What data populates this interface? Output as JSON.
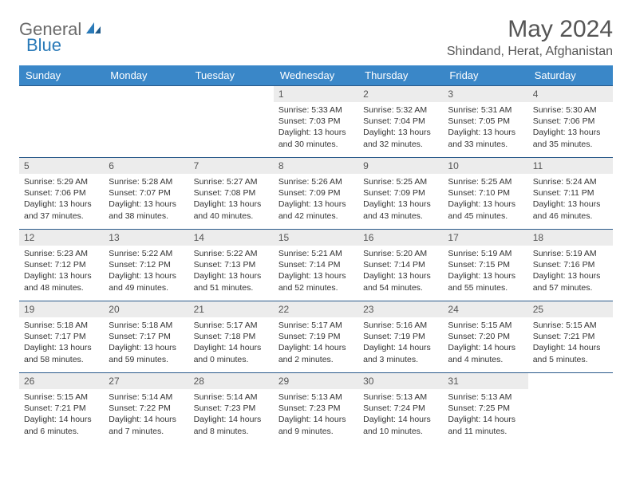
{
  "logo": {
    "text1": "General",
    "text2": "Blue"
  },
  "title": "May 2024",
  "location": "Shindand, Herat, Afghanistan",
  "colors": {
    "header_bg": "#3a87c8",
    "header_text": "#ffffff",
    "daynum_bg": "#ececec",
    "border": "#2a5a8a",
    "logo_gray": "#6a6a6a",
    "logo_blue": "#2a7ab8"
  },
  "weekdays": [
    "Sunday",
    "Monday",
    "Tuesday",
    "Wednesday",
    "Thursday",
    "Friday",
    "Saturday"
  ],
  "weeks": [
    [
      null,
      null,
      null,
      {
        "n": "1",
        "sr": "Sunrise: 5:33 AM",
        "ss": "Sunset: 7:03 PM",
        "d1": "Daylight: 13 hours",
        "d2": "and 30 minutes."
      },
      {
        "n": "2",
        "sr": "Sunrise: 5:32 AM",
        "ss": "Sunset: 7:04 PM",
        "d1": "Daylight: 13 hours",
        "d2": "and 32 minutes."
      },
      {
        "n": "3",
        "sr": "Sunrise: 5:31 AM",
        "ss": "Sunset: 7:05 PM",
        "d1": "Daylight: 13 hours",
        "d2": "and 33 minutes."
      },
      {
        "n": "4",
        "sr": "Sunrise: 5:30 AM",
        "ss": "Sunset: 7:06 PM",
        "d1": "Daylight: 13 hours",
        "d2": "and 35 minutes."
      }
    ],
    [
      {
        "n": "5",
        "sr": "Sunrise: 5:29 AM",
        "ss": "Sunset: 7:06 PM",
        "d1": "Daylight: 13 hours",
        "d2": "and 37 minutes."
      },
      {
        "n": "6",
        "sr": "Sunrise: 5:28 AM",
        "ss": "Sunset: 7:07 PM",
        "d1": "Daylight: 13 hours",
        "d2": "and 38 minutes."
      },
      {
        "n": "7",
        "sr": "Sunrise: 5:27 AM",
        "ss": "Sunset: 7:08 PM",
        "d1": "Daylight: 13 hours",
        "d2": "and 40 minutes."
      },
      {
        "n": "8",
        "sr": "Sunrise: 5:26 AM",
        "ss": "Sunset: 7:09 PM",
        "d1": "Daylight: 13 hours",
        "d2": "and 42 minutes."
      },
      {
        "n": "9",
        "sr": "Sunrise: 5:25 AM",
        "ss": "Sunset: 7:09 PM",
        "d1": "Daylight: 13 hours",
        "d2": "and 43 minutes."
      },
      {
        "n": "10",
        "sr": "Sunrise: 5:25 AM",
        "ss": "Sunset: 7:10 PM",
        "d1": "Daylight: 13 hours",
        "d2": "and 45 minutes."
      },
      {
        "n": "11",
        "sr": "Sunrise: 5:24 AM",
        "ss": "Sunset: 7:11 PM",
        "d1": "Daylight: 13 hours",
        "d2": "and 46 minutes."
      }
    ],
    [
      {
        "n": "12",
        "sr": "Sunrise: 5:23 AM",
        "ss": "Sunset: 7:12 PM",
        "d1": "Daylight: 13 hours",
        "d2": "and 48 minutes."
      },
      {
        "n": "13",
        "sr": "Sunrise: 5:22 AM",
        "ss": "Sunset: 7:12 PM",
        "d1": "Daylight: 13 hours",
        "d2": "and 49 minutes."
      },
      {
        "n": "14",
        "sr": "Sunrise: 5:22 AM",
        "ss": "Sunset: 7:13 PM",
        "d1": "Daylight: 13 hours",
        "d2": "and 51 minutes."
      },
      {
        "n": "15",
        "sr": "Sunrise: 5:21 AM",
        "ss": "Sunset: 7:14 PM",
        "d1": "Daylight: 13 hours",
        "d2": "and 52 minutes."
      },
      {
        "n": "16",
        "sr": "Sunrise: 5:20 AM",
        "ss": "Sunset: 7:14 PM",
        "d1": "Daylight: 13 hours",
        "d2": "and 54 minutes."
      },
      {
        "n": "17",
        "sr": "Sunrise: 5:19 AM",
        "ss": "Sunset: 7:15 PM",
        "d1": "Daylight: 13 hours",
        "d2": "and 55 minutes."
      },
      {
        "n": "18",
        "sr": "Sunrise: 5:19 AM",
        "ss": "Sunset: 7:16 PM",
        "d1": "Daylight: 13 hours",
        "d2": "and 57 minutes."
      }
    ],
    [
      {
        "n": "19",
        "sr": "Sunrise: 5:18 AM",
        "ss": "Sunset: 7:17 PM",
        "d1": "Daylight: 13 hours",
        "d2": "and 58 minutes."
      },
      {
        "n": "20",
        "sr": "Sunrise: 5:18 AM",
        "ss": "Sunset: 7:17 PM",
        "d1": "Daylight: 13 hours",
        "d2": "and 59 minutes."
      },
      {
        "n": "21",
        "sr": "Sunrise: 5:17 AM",
        "ss": "Sunset: 7:18 PM",
        "d1": "Daylight: 14 hours",
        "d2": "and 0 minutes."
      },
      {
        "n": "22",
        "sr": "Sunrise: 5:17 AM",
        "ss": "Sunset: 7:19 PM",
        "d1": "Daylight: 14 hours",
        "d2": "and 2 minutes."
      },
      {
        "n": "23",
        "sr": "Sunrise: 5:16 AM",
        "ss": "Sunset: 7:19 PM",
        "d1": "Daylight: 14 hours",
        "d2": "and 3 minutes."
      },
      {
        "n": "24",
        "sr": "Sunrise: 5:15 AM",
        "ss": "Sunset: 7:20 PM",
        "d1": "Daylight: 14 hours",
        "d2": "and 4 minutes."
      },
      {
        "n": "25",
        "sr": "Sunrise: 5:15 AM",
        "ss": "Sunset: 7:21 PM",
        "d1": "Daylight: 14 hours",
        "d2": "and 5 minutes."
      }
    ],
    [
      {
        "n": "26",
        "sr": "Sunrise: 5:15 AM",
        "ss": "Sunset: 7:21 PM",
        "d1": "Daylight: 14 hours",
        "d2": "and 6 minutes."
      },
      {
        "n": "27",
        "sr": "Sunrise: 5:14 AM",
        "ss": "Sunset: 7:22 PM",
        "d1": "Daylight: 14 hours",
        "d2": "and 7 minutes."
      },
      {
        "n": "28",
        "sr": "Sunrise: 5:14 AM",
        "ss": "Sunset: 7:23 PM",
        "d1": "Daylight: 14 hours",
        "d2": "and 8 minutes."
      },
      {
        "n": "29",
        "sr": "Sunrise: 5:13 AM",
        "ss": "Sunset: 7:23 PM",
        "d1": "Daylight: 14 hours",
        "d2": "and 9 minutes."
      },
      {
        "n": "30",
        "sr": "Sunrise: 5:13 AM",
        "ss": "Sunset: 7:24 PM",
        "d1": "Daylight: 14 hours",
        "d2": "and 10 minutes."
      },
      {
        "n": "31",
        "sr": "Sunrise: 5:13 AM",
        "ss": "Sunset: 7:25 PM",
        "d1": "Daylight: 14 hours",
        "d2": "and 11 minutes."
      },
      null
    ]
  ]
}
